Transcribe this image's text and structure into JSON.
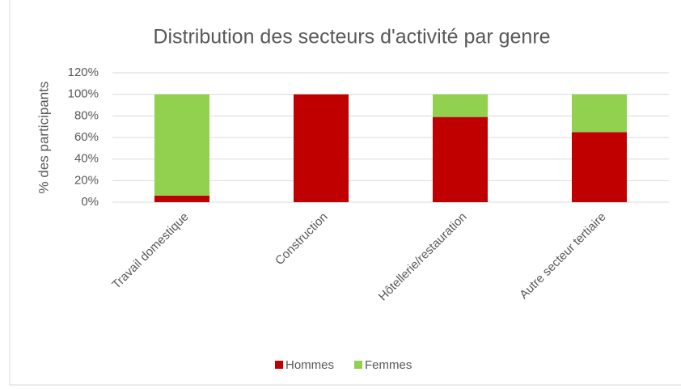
{
  "chart_data": {
    "type": "stacked_bar",
    "title": "Distribution des secteurs d'activité par genre",
    "y_label": "% des participants",
    "categories": [
      "Travail domestique",
      "Construction",
      "Hôtellerie/restauration",
      "Autre secteur tertiaire"
    ],
    "series": [
      {
        "name": "Hommes",
        "color": "#c00000",
        "values": [
          6,
          100,
          79,
          65
        ]
      },
      {
        "name": "Femmes",
        "color": "#92d050",
        "values": [
          94,
          0,
          21,
          35
        ]
      }
    ],
    "ylim": [
      0,
      120
    ],
    "yticks": [
      {
        "value": 0,
        "label": "0%"
      },
      {
        "value": 20,
        "label": "20%"
      },
      {
        "value": 40,
        "label": "40%"
      },
      {
        "value": 60,
        "label": "60%"
      },
      {
        "value": 80,
        "label": "80%"
      },
      {
        "value": 100,
        "label": "100%"
      },
      {
        "value": 120,
        "label": "120%"
      }
    ],
    "grid": true,
    "legend": "bottom"
  }
}
